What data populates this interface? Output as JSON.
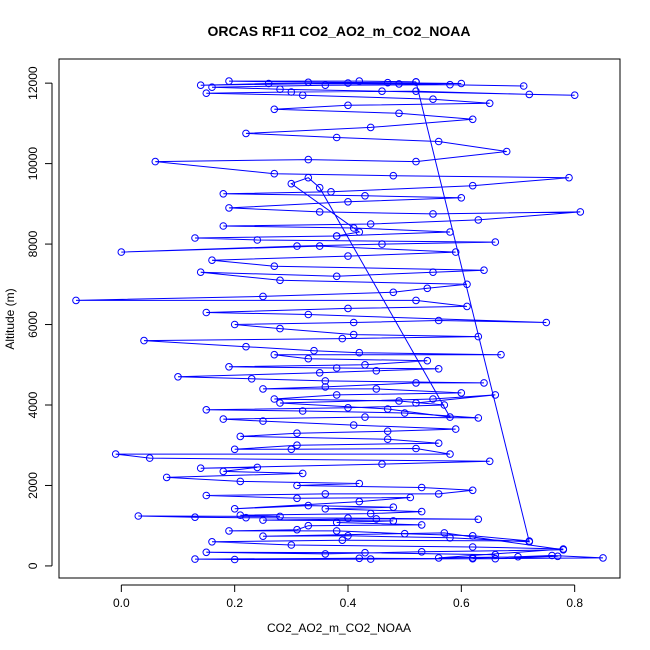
{
  "chart_data": {
    "type": "scatter",
    "title": "ORCAS RF11 CO2_AO2_m_CO2_NOAA",
    "xlabel": "CO2_AO2_m_CO2_NOAA",
    "ylabel": "Altitude (m)",
    "xlim": [
      -0.11,
      0.88
    ],
    "ylim": [
      -300,
      12600
    ],
    "x_ticks": [
      0.0,
      0.2,
      0.4,
      0.6,
      0.8
    ],
    "x_tick_labels": [
      "0.0",
      "0.2",
      "0.4",
      "0.6",
      "0.8"
    ],
    "y_ticks": [
      0,
      2000,
      4000,
      6000,
      8000,
      10000,
      12000
    ],
    "y_tick_labels": [
      "0",
      "2000",
      "4000",
      "6000",
      "8000",
      "10000",
      "12000"
    ],
    "grid": false,
    "markers": "open-circle",
    "connected": true,
    "series_color": "#0000ff",
    "series": [
      {
        "points": [
          [
            0.62,
            200
          ],
          [
            0.7,
            230
          ],
          [
            0.76,
            260
          ],
          [
            0.85,
            200
          ],
          [
            0.62,
            180
          ],
          [
            0.44,
            170
          ],
          [
            0.2,
            160
          ],
          [
            0.13,
            170
          ],
          [
            0.42,
            190
          ],
          [
            0.66,
            180
          ],
          [
            0.77,
            240
          ],
          [
            0.56,
            200
          ],
          [
            0.78,
            420
          ],
          [
            0.62,
            470
          ],
          [
            0.3,
            520
          ],
          [
            0.16,
            600
          ],
          [
            0.39,
            640
          ],
          [
            0.72,
            620
          ],
          [
            0.62,
            750
          ],
          [
            0.5,
            800
          ],
          [
            0.38,
            870
          ],
          [
            0.19,
            870
          ],
          [
            0.31,
            900
          ],
          [
            0.33,
            1000
          ],
          [
            0.53,
            1020
          ],
          [
            0.38,
            1080
          ],
          [
            0.48,
            1120
          ],
          [
            0.25,
            1140
          ],
          [
            0.45,
            1170
          ],
          [
            0.63,
            1160
          ],
          [
            0.4,
            1190
          ],
          [
            0.22,
            1200
          ],
          [
            0.13,
            1210
          ],
          [
            0.03,
            1240
          ],
          [
            0.28,
            1230
          ],
          [
            0.21,
            1260
          ],
          [
            0.44,
            1300
          ],
          [
            0.53,
            1350
          ],
          [
            0.36,
            1420
          ],
          [
            0.48,
            1460
          ],
          [
            0.33,
            1500
          ],
          [
            0.2,
            1420
          ],
          [
            0.42,
            1600
          ],
          [
            0.51,
            1700
          ],
          [
            0.31,
            1680
          ],
          [
            0.15,
            1750
          ],
          [
            0.36,
            1790
          ],
          [
            0.56,
            1790
          ],
          [
            0.62,
            1880
          ],
          [
            0.53,
            1950
          ],
          [
            0.31,
            2000
          ],
          [
            0.42,
            2050
          ],
          [
            0.21,
            2100
          ],
          [
            0.08,
            2200
          ],
          [
            0.32,
            2300
          ],
          [
            0.18,
            2350
          ],
          [
            0.24,
            2450
          ],
          [
            0.14,
            2430
          ],
          [
            0.46,
            2530
          ],
          [
            0.65,
            2600
          ],
          [
            0.05,
            2680
          ],
          [
            -0.01,
            2780
          ],
          [
            0.58,
            2780
          ],
          [
            0.52,
            2920
          ],
          [
            0.3,
            2900
          ],
          [
            0.2,
            2900
          ],
          [
            0.31,
            3000
          ],
          [
            0.56,
            3050
          ],
          [
            0.47,
            3150
          ],
          [
            0.21,
            3220
          ],
          [
            0.31,
            3300
          ],
          [
            0.47,
            3350
          ],
          [
            0.59,
            3400
          ],
          [
            0.41,
            3500
          ],
          [
            0.25,
            3600
          ],
          [
            0.18,
            3650
          ],
          [
            0.43,
            3700
          ],
          [
            0.63,
            3680
          ],
          [
            0.5,
            3800
          ],
          [
            0.32,
            3850
          ],
          [
            0.15,
            3880
          ],
          [
            0.4,
            3930
          ],
          [
            0.57,
            4000
          ],
          [
            0.49,
            4100
          ],
          [
            0.27,
            4150
          ],
          [
            0.38,
            4250
          ],
          [
            0.6,
            4300
          ],
          [
            0.45,
            4400
          ],
          [
            0.25,
            4400
          ],
          [
            0.36,
            4450
          ],
          [
            0.52,
            4550
          ],
          [
            0.64,
            4550
          ],
          [
            0.36,
            4600
          ],
          [
            0.23,
            4650
          ],
          [
            0.1,
            4700
          ],
          [
            0.35,
            4800
          ],
          [
            0.45,
            4850
          ],
          [
            0.56,
            4900
          ],
          [
            0.38,
            4920
          ],
          [
            0.19,
            4950
          ],
          [
            0.43,
            5000
          ],
          [
            0.54,
            5100
          ],
          [
            0.33,
            5150
          ],
          [
            0.27,
            5250
          ],
          [
            0.67,
            5250
          ],
          [
            0.42,
            5300
          ],
          [
            0.34,
            5350
          ],
          [
            0.22,
            5450
          ],
          [
            0.04,
            5600
          ],
          [
            0.39,
            5650
          ],
          [
            0.63,
            5700
          ],
          [
            0.41,
            5750
          ],
          [
            0.28,
            5900
          ],
          [
            0.2,
            6000
          ],
          [
            0.41,
            6050
          ],
          [
            0.56,
            6100
          ],
          [
            0.75,
            6050
          ],
          [
            0.33,
            6250
          ],
          [
            0.15,
            6300
          ],
          [
            0.4,
            6400
          ],
          [
            0.61,
            6450
          ],
          [
            0.52,
            6600
          ],
          [
            -0.08,
            6600
          ],
          [
            0.25,
            6700
          ],
          [
            0.48,
            6800
          ],
          [
            0.54,
            6900
          ],
          [
            0.61,
            7000
          ],
          [
            0.28,
            7100
          ],
          [
            0.14,
            7300
          ],
          [
            0.38,
            7200
          ],
          [
            0.55,
            7300
          ],
          [
            0.64,
            7350
          ],
          [
            0.27,
            7450
          ],
          [
            0.16,
            7600
          ],
          [
            0.4,
            7700
          ],
          [
            0.59,
            7800
          ],
          [
            0.35,
            7950
          ],
          [
            0.0,
            7800
          ],
          [
            0.31,
            7950
          ],
          [
            0.46,
            8000
          ],
          [
            0.66,
            8050
          ],
          [
            0.24,
            8100
          ],
          [
            0.13,
            8150
          ],
          [
            0.38,
            8200
          ],
          [
            0.58,
            8300
          ],
          [
            0.41,
            8400
          ],
          [
            0.18,
            8450
          ],
          [
            0.44,
            8500
          ],
          [
            0.63,
            8600
          ],
          [
            0.81,
            8800
          ],
          [
            0.55,
            8750
          ],
          [
            0.35,
            8800
          ],
          [
            0.19,
            8900
          ],
          [
            0.4,
            9050
          ],
          [
            0.6,
            9150
          ],
          [
            0.43,
            9200
          ],
          [
            0.18,
            9250
          ],
          [
            0.37,
            9300
          ],
          [
            0.62,
            9450
          ],
          [
            0.79,
            9650
          ],
          [
            0.48,
            9700
          ],
          [
            0.27,
            9750
          ],
          [
            0.06,
            10050
          ],
          [
            0.33,
            10100
          ],
          [
            0.52,
            10050
          ],
          [
            0.68,
            10300
          ],
          [
            0.56,
            10550
          ],
          [
            0.38,
            10650
          ],
          [
            0.22,
            10750
          ],
          [
            0.44,
            10900
          ],
          [
            0.62,
            11100
          ],
          [
            0.49,
            11250
          ],
          [
            0.27,
            11350
          ],
          [
            0.4,
            11450
          ],
          [
            0.65,
            11500
          ],
          [
            0.55,
            11600
          ],
          [
            0.32,
            11700
          ],
          [
            0.15,
            11750
          ],
          [
            0.3,
            11780
          ],
          [
            0.52,
            11800
          ],
          [
            0.72,
            11720
          ],
          [
            0.8,
            11700
          ],
          [
            0.46,
            11800
          ],
          [
            0.28,
            11850
          ],
          [
            0.16,
            11900
          ],
          [
            0.36,
            11950
          ],
          [
            0.58,
            11960
          ],
          [
            0.71,
            11930
          ],
          [
            0.49,
            11980
          ],
          [
            0.26,
            11990
          ],
          [
            0.14,
            11950
          ],
          [
            0.4,
            12000
          ],
          [
            0.6,
            11990
          ],
          [
            0.47,
            12010
          ],
          [
            0.33,
            12020
          ],
          [
            0.19,
            12050
          ],
          [
            0.42,
            12050
          ],
          [
            0.52,
            12030
          ]
        ]
      },
      {
        "points": [
          [
            0.52,
            12030
          ],
          [
            0.72,
            600
          ],
          [
            0.58,
            700
          ],
          [
            0.4,
            750
          ],
          [
            0.25,
            740
          ],
          [
            0.57,
            820
          ],
          [
            0.78,
            400
          ],
          [
            0.53,
            350
          ],
          [
            0.36,
            300
          ],
          [
            0.15,
            340
          ],
          [
            0.43,
            330
          ],
          [
            0.66,
            280
          ]
        ]
      },
      {
        "points": [
          [
            0.38,
            8200
          ],
          [
            0.42,
            8300
          ],
          [
            0.3,
            9500
          ],
          [
            0.33,
            9650
          ],
          [
            0.35,
            9400
          ],
          [
            0.58,
            3700
          ],
          [
            0.47,
            3900
          ],
          [
            0.28,
            4050
          ],
          [
            0.55,
            4150
          ],
          [
            0.66,
            4250
          ],
          [
            0.52,
            4050
          ]
        ]
      }
    ]
  }
}
